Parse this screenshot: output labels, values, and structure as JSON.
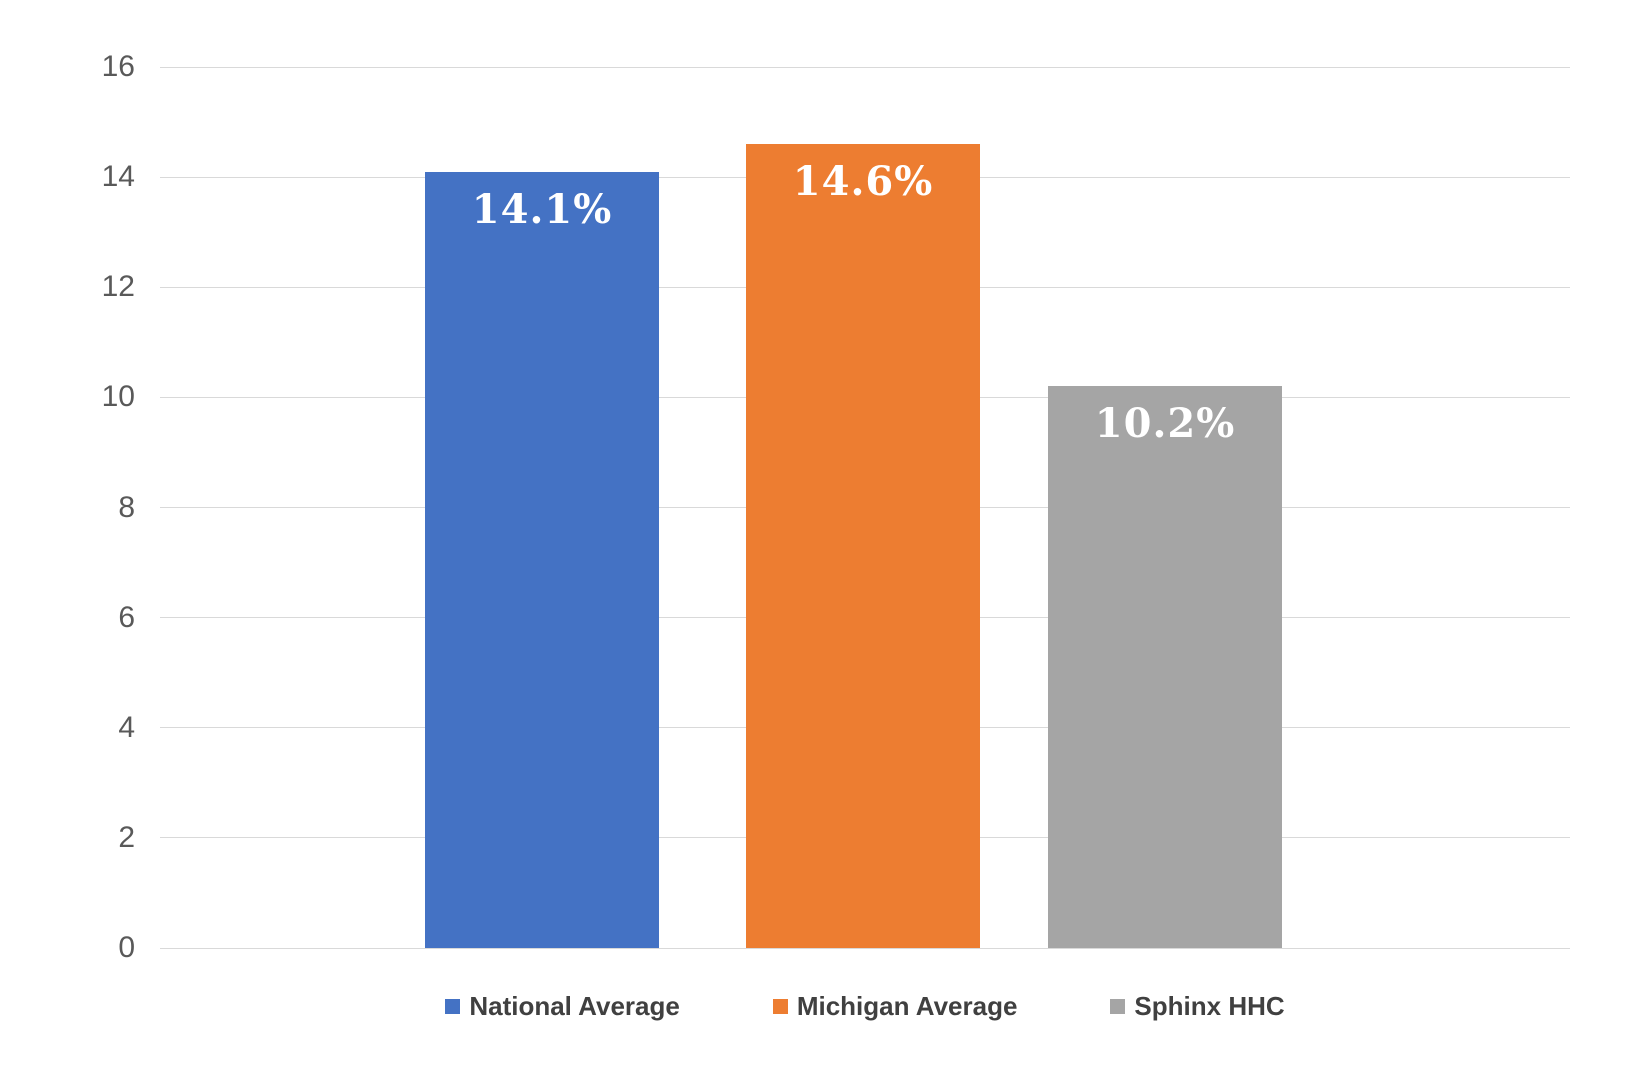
{
  "chart_data": {
    "type": "bar",
    "categories": [
      "National Average",
      "Michigan Average",
      "Sphinx HHC"
    ],
    "values": [
      14.1,
      14.6,
      10.2
    ],
    "data_labels": [
      "14.1%",
      "14.6%",
      "10.2%"
    ],
    "bar_colors": [
      "#4472C4",
      "#ED7D31",
      "#A5A5A5"
    ],
    "ylim": [
      0,
      16
    ],
    "yticks": [
      0,
      2,
      4,
      6,
      8,
      10,
      12,
      14,
      16
    ],
    "grid": true,
    "legend_position": "bottom",
    "legend": [
      {
        "label": "National Average",
        "color": "#4472C4"
      },
      {
        "label": "Michigan Average",
        "color": "#ED7D31"
      },
      {
        "label": "Sphinx HHC",
        "color": "#A5A5A5"
      }
    ]
  },
  "styles": {
    "background_color": "#FFFFFF",
    "gridline_color": "#D9D9D9",
    "axis_label_color": "#595959",
    "legend_text_color": "#404040",
    "bar_label_color": "#FFFFFF"
  }
}
